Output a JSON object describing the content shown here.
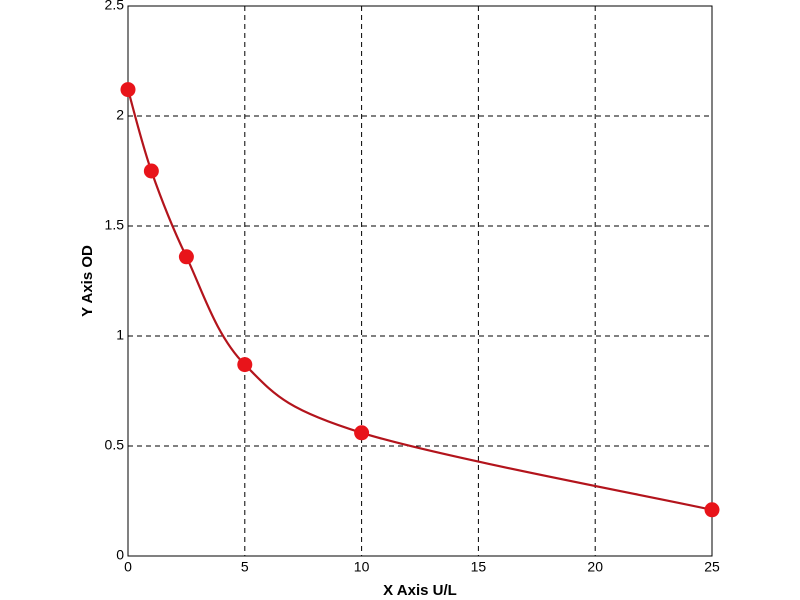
{
  "chart_data": {
    "type": "scatter",
    "xlabel": "X Axis U/L",
    "ylabel": "Y Axis OD",
    "series": [
      {
        "color": "#e8141a",
        "line_color": "#b3141c",
        "x": [
          0,
          1,
          2.5,
          5,
          10,
          25
        ],
        "values": [
          2.12,
          1.75,
          1.36,
          0.87,
          0.56,
          0.21
        ]
      }
    ],
    "xlim": [
      0,
      25
    ],
    "xticks": [
      0,
      5,
      10,
      15,
      20,
      25
    ],
    "ylim": [
      0,
      2.5
    ],
    "yticks": [
      0,
      0.5,
      1,
      1.5,
      2,
      2.5
    ],
    "grid": true,
    "line": true
  }
}
